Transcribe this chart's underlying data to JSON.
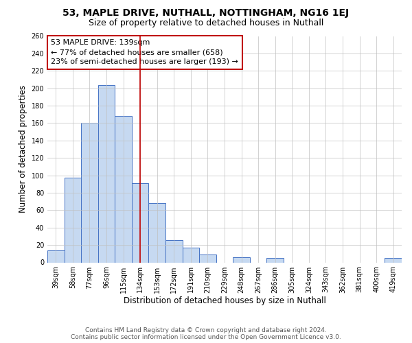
{
  "title": "53, MAPLE DRIVE, NUTHALL, NOTTINGHAM, NG16 1EJ",
  "subtitle": "Size of property relative to detached houses in Nuthall",
  "xlabel": "Distribution of detached houses by size in Nuthall",
  "ylabel": "Number of detached properties",
  "bar_labels": [
    "39sqm",
    "58sqm",
    "77sqm",
    "96sqm",
    "115sqm",
    "134sqm",
    "153sqm",
    "172sqm",
    "191sqm",
    "210sqm",
    "229sqm",
    "248sqm",
    "267sqm",
    "286sqm",
    "305sqm",
    "324sqm",
    "343sqm",
    "362sqm",
    "381sqm",
    "400sqm",
    "419sqm"
  ],
  "bar_values": [
    14,
    97,
    160,
    204,
    168,
    91,
    68,
    26,
    17,
    9,
    0,
    6,
    0,
    5,
    0,
    0,
    0,
    0,
    0,
    0,
    5
  ],
  "bar_color": "#c6d9f1",
  "bar_edge_color": "#4472c4",
  "vline_x": 5.0,
  "vline_color": "#c00000",
  "annotation_box_text": "53 MAPLE DRIVE: 139sqm\n← 77% of detached houses are smaller (658)\n23% of semi-detached houses are larger (193) →",
  "annotation_box_edge_color": "#c00000",
  "ylim": [
    0,
    260
  ],
  "yticks": [
    0,
    20,
    40,
    60,
    80,
    100,
    120,
    140,
    160,
    180,
    200,
    220,
    240,
    260
  ],
  "footnote1": "Contains HM Land Registry data © Crown copyright and database right 2024.",
  "footnote2": "Contains public sector information licensed under the Open Government Licence v3.0.",
  "bg_color": "#ffffff",
  "grid_color": "#c0c0c0",
  "title_fontsize": 10,
  "subtitle_fontsize": 9,
  "label_fontsize": 8.5,
  "tick_fontsize": 7,
  "annotation_fontsize": 8,
  "footnote_fontsize": 6.5
}
